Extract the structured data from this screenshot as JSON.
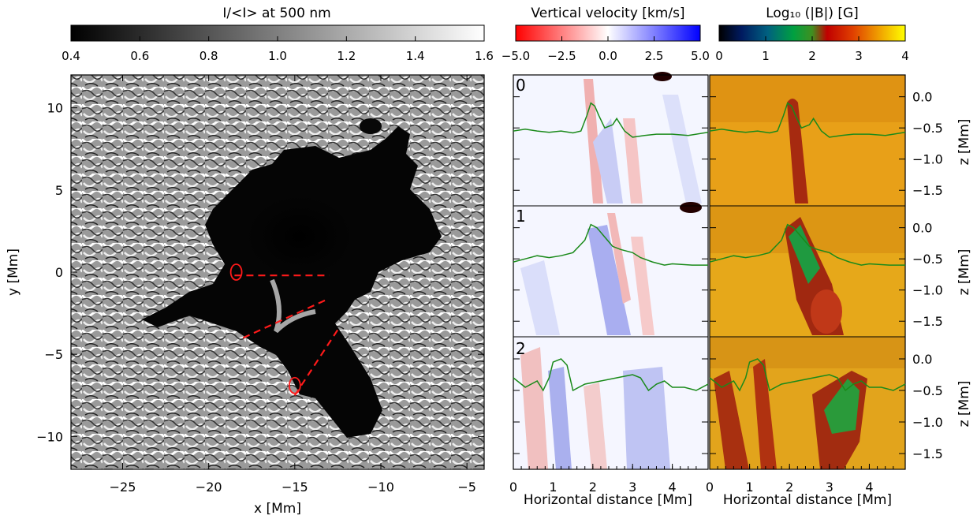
{
  "chart_data": [
    {
      "type": "heatmap",
      "panel": "intensity-map",
      "colorbar": {
        "title": "I/<I> at 500 nm",
        "range": [
          0.4,
          1.6
        ],
        "ticks": [
          "0.4",
          "0.6",
          "0.8",
          "1.0",
          "1.2",
          "1.4",
          "1.6"
        ],
        "colormap": "grayscale"
      },
      "xlabel": "x [Mm]",
      "ylabel": "y [Mm]",
      "xlim": [
        -28,
        -4
      ],
      "ylim": [
        -12,
        12
      ],
      "xticks": [
        "−25",
        "−20",
        "−15",
        "−10",
        "−5"
      ],
      "yticks": [
        "−10",
        "−5",
        "0",
        "5",
        "10"
      ],
      "cut_lines": [
        {
          "x": [
            -18.5,
            -13.0
          ],
          "y": [
            -0.2,
            -0.2
          ]
        },
        {
          "x": [
            -18.0,
            -13.2
          ],
          "y": [
            -4.0,
            -1.7
          ]
        },
        {
          "x": [
            -15.0,
            -12.5
          ],
          "y": [
            -7.5,
            -3.5
          ]
        }
      ],
      "markers": [
        {
          "x": -18.4,
          "y": 0.0
        },
        {
          "x": -15.0,
          "y": -6.9
        }
      ]
    },
    {
      "type": "heatmap",
      "panel": "vertical-velocity-slices",
      "colorbar": {
        "title": "Vertical velocity [km/s]",
        "range": [
          -5.0,
          5.0
        ],
        "ticks": [
          "−5.0",
          "−2.5",
          "0.0",
          "2.5",
          "5.0"
        ],
        "colormap": "red-white-blue"
      },
      "xlabel": "Horizontal distance [Mm]",
      "xlim": [
        0,
        4.9
      ],
      "xticks": [
        "0",
        "1",
        "2",
        "3",
        "4"
      ],
      "slice_labels": [
        "0",
        "1",
        "2"
      ]
    },
    {
      "type": "heatmap",
      "panel": "field-strength-slices",
      "colorbar": {
        "title": "Log₁₀ (|B|) [G]",
        "range": [
          0,
          4
        ],
        "ticks": [
          "0",
          "1",
          "2",
          "3",
          "4"
        ],
        "colormap": "rainbow"
      },
      "xlabel": "Horizontal distance [Mm]",
      "ylabel": "z [Mm]",
      "xlim": [
        0,
        4.9
      ],
      "ylim": [
        -1.75,
        0.35
      ],
      "xticks": [
        "0",
        "1",
        "2",
        "3",
        "4"
      ],
      "zticks": [
        "0.0",
        "−0.5",
        "−1.0",
        "−1.5"
      ],
      "tau_unity_curves": [
        {
          "x": [
            0,
            0.3,
            0.6,
            0.9,
            1.2,
            1.5,
            1.7,
            1.85,
            1.95,
            2.05,
            2.15,
            2.3,
            2.5,
            2.6,
            2.8,
            3.0,
            3.3,
            3.6,
            4.0,
            4.4,
            4.9
          ],
          "z": [
            -0.55,
            -0.52,
            -0.55,
            -0.57,
            -0.55,
            -0.58,
            -0.55,
            -0.3,
            -0.1,
            -0.15,
            -0.3,
            -0.5,
            -0.45,
            -0.35,
            -0.55,
            -0.65,
            -0.62,
            -0.6,
            -0.6,
            -0.62,
            -0.57
          ]
        },
        {
          "x": [
            0,
            0.3,
            0.6,
            0.9,
            1.2,
            1.5,
            1.8,
            1.95,
            2.1,
            2.3,
            2.5,
            2.7,
            3.0,
            3.2,
            3.5,
            3.8,
            4.0,
            4.5,
            4.9
          ],
          "z": [
            -0.55,
            -0.5,
            -0.45,
            -0.48,
            -0.45,
            -0.4,
            -0.2,
            0.05,
            0.0,
            -0.15,
            -0.3,
            -0.35,
            -0.4,
            -0.48,
            -0.55,
            -0.6,
            -0.58,
            -0.6,
            -0.6
          ]
        },
        {
          "x": [
            0,
            0.3,
            0.6,
            0.75,
            0.9,
            1.0,
            1.2,
            1.35,
            1.5,
            1.8,
            2.2,
            2.6,
            3.0,
            3.2,
            3.4,
            3.6,
            3.8,
            4.0,
            4.3,
            4.6,
            4.9
          ],
          "z": [
            -0.3,
            -0.45,
            -0.35,
            -0.5,
            -0.3,
            -0.05,
            0.0,
            -0.1,
            -0.5,
            -0.4,
            -0.35,
            -0.3,
            -0.25,
            -0.3,
            -0.5,
            -0.4,
            -0.35,
            -0.45,
            -0.45,
            -0.5,
            -0.4
          ]
        }
      ]
    }
  ]
}
